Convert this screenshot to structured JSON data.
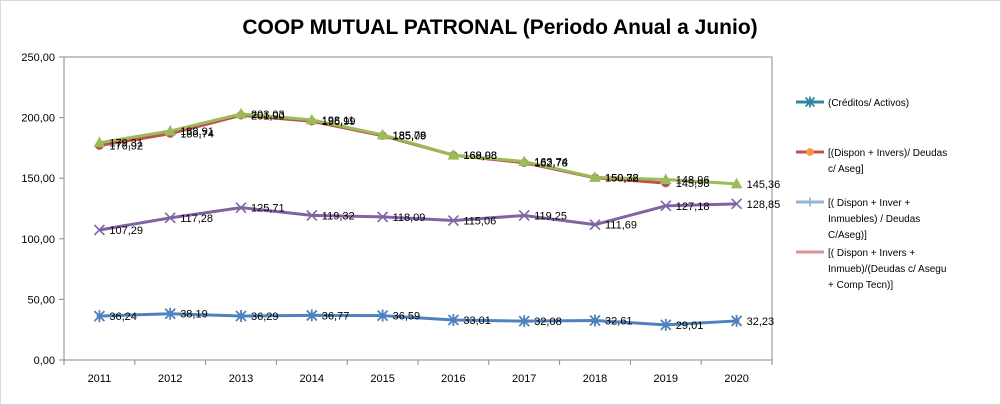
{
  "chart_data": {
    "type": "line",
    "title": "COOP MUTUAL PATRONAL (Periodo Anual a Junio)",
    "xlabel": "",
    "ylabel": "",
    "categories": [
      "2011",
      "2012",
      "2013",
      "2014",
      "2015",
      "2016",
      "2017",
      "2018",
      "2019",
      "2020"
    ],
    "ylim": [
      0,
      250
    ],
    "yticks": [
      "0,00",
      "50,00",
      "100,00",
      "150,00",
      "200,00",
      "250,00"
    ],
    "grid": false,
    "legend_position": "right",
    "series": [
      {
        "name": "(Créditos/ Activos)",
        "legend_lines": [
          "(Créditos/ Activos)"
        ],
        "color": "#4f81bd",
        "marker": "star",
        "values": [
          36.24,
          38.19,
          36.29,
          36.77,
          36.59,
          33.01,
          32.08,
          32.61,
          29.01,
          32.23
        ],
        "labels": [
          "36,24",
          "38,19",
          "36,29",
          "36,77",
          "36,59",
          "33,01",
          "32,08",
          "32,61",
          "29,01",
          "32,23"
        ]
      },
      {
        "name": "[(Dispon + Invers)/ Deudas c/ Aseg]",
        "legend_lines": [
          "[(Dispon + Invers)/ Deudas",
          "c/ Aseg]"
        ],
        "color": "#c0504d",
        "marker": "circle",
        "values": [
          176.92,
          186.74,
          201.9,
          196.99,
          185.09,
          168.98,
          162.78,
          150.38,
          145.98,
          null
        ],
        "labels": [
          "176,92",
          "186,74",
          "201,90",
          "196,99",
          "185,09",
          "168,98",
          "162,78",
          "150,38",
          "145,98",
          ""
        ]
      },
      {
        "name": "[( Dispon + Inver + Inmuebles) / Deudas C/Aseg)]",
        "legend_lines": [
          "[( Dispon + Inver +",
          "Inmuebles) / Deudas",
          "C/Aseg)]"
        ],
        "color": "#9bbb59",
        "marker": "triangle",
        "values": [
          179.31,
          188.91,
          203.03,
          198.11,
          185.78,
          169.08,
          163.74,
          150.72,
          148.96,
          145.36
        ],
        "labels": [
          "179,31",
          "188,91",
          "203,03",
          "198,11",
          "185,78",
          "169,08",
          "163,74",
          "150,72",
          "148,96",
          "145,36"
        ]
      },
      {
        "name": "[( Dispon + Invers + Inmueb)/(Deudas c/ Asegu + Comp Tecn)]",
        "legend_lines": [
          "[( Dispon + Invers +",
          "Inmueb)/(Deudas c/ Asegu",
          "+ Comp Tecn)]"
        ],
        "color": "#8064a2",
        "marker": "x",
        "values": [
          107.29,
          117.28,
          125.71,
          119.32,
          118.09,
          115.06,
          119.25,
          111.69,
          127.18,
          128.85
        ],
        "labels": [
          "107,29",
          "117,28",
          "125,71",
          "119,32",
          "118,09",
          "115,06",
          "119,25",
          "111,69",
          "127,18",
          "128,85"
        ]
      }
    ]
  },
  "legend_styles": [
    {
      "line": "#31859c",
      "marker_color": "#31859c",
      "marker": "star"
    },
    {
      "line": "#c0504d",
      "marker_color": "#f79646",
      "marker": "circle"
    },
    {
      "line": "#95b3d7",
      "marker_color": "#95b3d7",
      "marker": "plus"
    },
    {
      "line": "#d99694",
      "marker_color": "#d99694",
      "marker": "none"
    }
  ]
}
